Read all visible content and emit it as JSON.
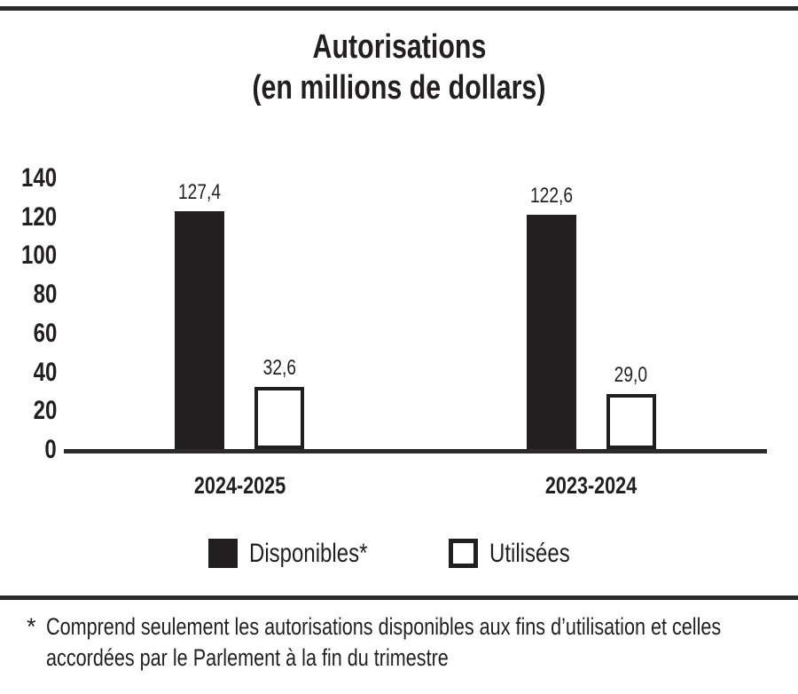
{
  "colors": {
    "ink": "#231f20",
    "rule": "#2b2b2b",
    "background": "#ffffff"
  },
  "chart_data": {
    "type": "bar",
    "title": "Autorisations",
    "subtitle": "(en millions de dollars)",
    "categories": [
      "2024-2025",
      "2023-2024"
    ],
    "series": [
      {
        "name": "Disponibles*",
        "swatch": "filled",
        "values": [
          127.4,
          122.6
        ],
        "labels": [
          "127,4",
          "122,6"
        ]
      },
      {
        "name": "Utilisées",
        "swatch": "outlined",
        "values": [
          32.6,
          29.0
        ],
        "labels": [
          "32,6",
          "29,0"
        ]
      }
    ],
    "ylim": [
      0,
      140
    ],
    "yticks": [
      0,
      20,
      40,
      60,
      80,
      100,
      120,
      140
    ],
    "grid": false,
    "legend_position": "bottom"
  },
  "footnote": {
    "marker": "*",
    "lines": [
      "Comprend seulement les autorisations disponibles aux fins d’utilisation et celles",
      "accordées par le Parlement à la fin du trimestre"
    ]
  }
}
